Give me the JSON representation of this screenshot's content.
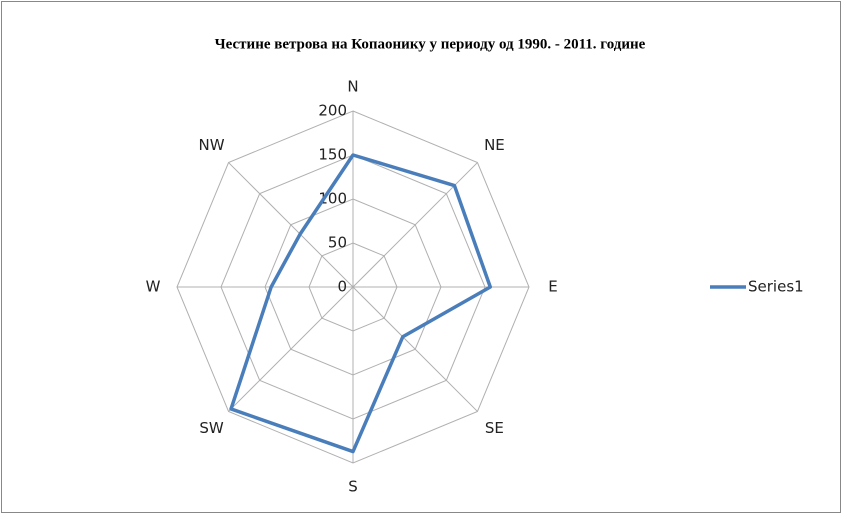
{
  "chart_data": {
    "type": "radar",
    "title": "Честине ветрова на Копаонику у периоду од 1990. - 2011. године",
    "categories": [
      "N",
      "NE",
      "E",
      "SE",
      "S",
      "SW",
      "W",
      "NW"
    ],
    "series": [
      {
        "name": "Series1",
        "color": "#4a7ebb",
        "values": [
          150,
          163,
          156,
          80,
          187,
          196,
          93,
          85
        ]
      }
    ],
    "ylim": [
      0,
      200
    ],
    "yticks": [
      0,
      50,
      100,
      150,
      200
    ],
    "grid": true,
    "legend": "right"
  }
}
